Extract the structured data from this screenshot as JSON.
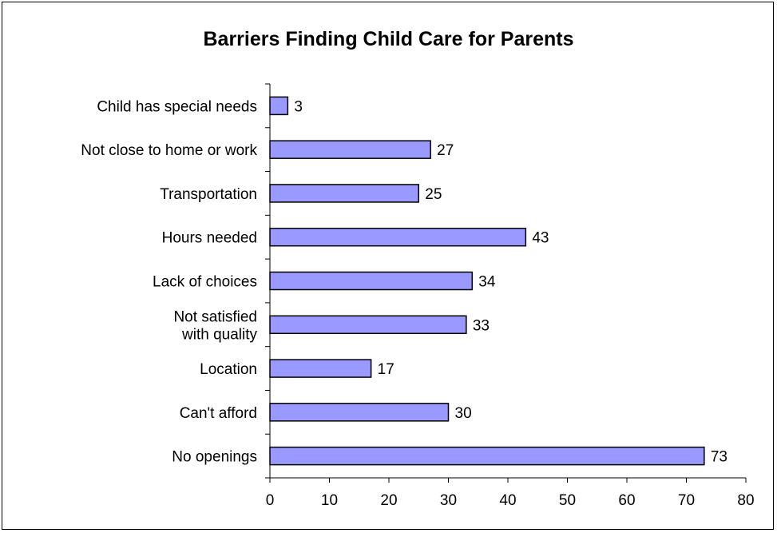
{
  "chart_data": {
    "type": "bar",
    "orientation": "horizontal",
    "title": "Barriers Finding Child Care for Parents",
    "xlabel": "",
    "ylabel": "",
    "categories": [
      [
        "Child has special needs"
      ],
      [
        "Not close to home or work"
      ],
      [
        "Transportation"
      ],
      [
        "Hours needed"
      ],
      [
        "Lack of choices"
      ],
      [
        "Not satisfied",
        "with quality"
      ],
      [
        "Location"
      ],
      [
        "Can't afford"
      ],
      [
        "No openings"
      ]
    ],
    "values": [
      3,
      27,
      25,
      43,
      34,
      33,
      17,
      30,
      73
    ],
    "xlim": [
      0,
      80
    ],
    "xticks": [
      0,
      10,
      20,
      30,
      40,
      50,
      60,
      70,
      80
    ],
    "grid": false,
    "legend": "none",
    "colors": {
      "bar_fill": "#9999ff",
      "bar_stroke": "#000000"
    }
  }
}
